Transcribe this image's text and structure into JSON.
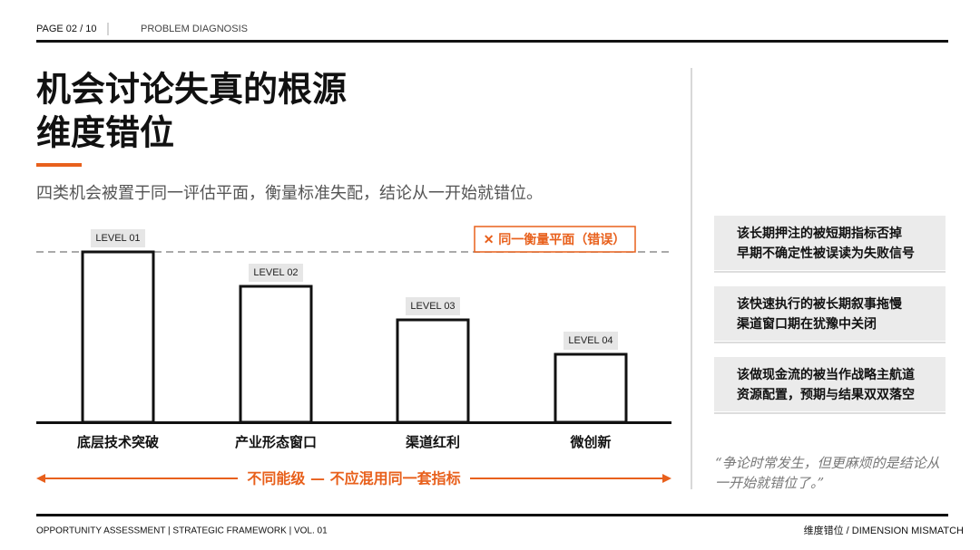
{
  "header": {
    "page": "PAGE 02 / 10",
    "section": "PROBLEM DIAGNOSIS"
  },
  "title": [
    "机会讨论失真的根源",
    "维度错位"
  ],
  "subtitle": "四类机会被置于同一评估平面，衡量标准失配，结论从一开始就错位。",
  "diagram": {
    "plane_label": "✕ 同一衡量平面（错误）",
    "levels": [
      {
        "level": "LEVEL 01",
        "name": "底层技术突破"
      },
      {
        "level": "LEVEL 02",
        "name": "产业形态窗口"
      },
      {
        "level": "LEVEL 03",
        "name": "渠道红利"
      },
      {
        "level": "LEVEL 04",
        "name": "微创新"
      }
    ],
    "arrow_label": "不同能级 — 不应混用同一套指标"
  },
  "notes": [
    [
      "该长期押注的被短期指标否掉",
      "早期不确定性被误读为失败信号"
    ],
    [
      "该快速执行的被长期叙事拖慢",
      "渠道窗口期在犹豫中关闭"
    ],
    [
      "该做现金流的被当作战略主航道",
      "资源配置，预期与结果双双落空"
    ]
  ],
  "quote": "“争论时常发生，但更麻烦的是结论从一开始就错位了。”",
  "footer": {
    "left": "OPPORTUNITY ASSESSMENT | STRATEGIC FRAMEWORK | VOL. 01",
    "right": "维度错位 / DIMENSION MISMATCH"
  }
}
